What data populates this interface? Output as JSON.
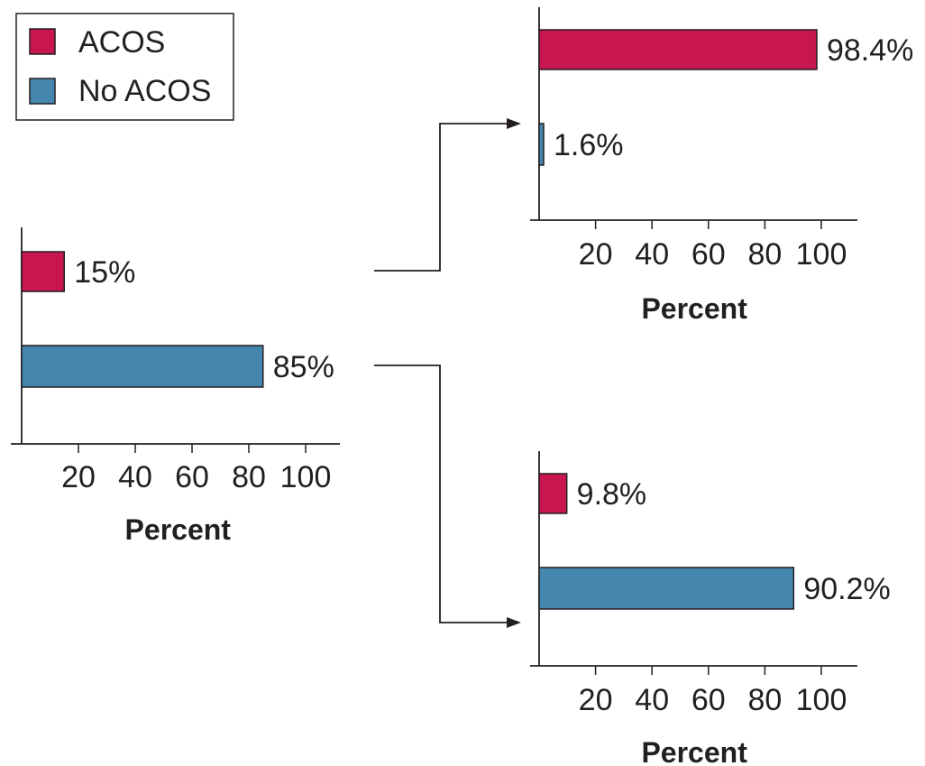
{
  "legend": {
    "items": [
      {
        "label": "ACOS",
        "color": "#c8174f"
      },
      {
        "label": "No ACOS",
        "color": "#4586ae"
      }
    ]
  },
  "colors": {
    "axis": "#231f20",
    "bar_stroke": "#231f20",
    "connector": "#231f20"
  },
  "chart_data": [
    {
      "type": "bar",
      "orientation": "horizontal",
      "categories": [
        "ACOS",
        "No ACOS"
      ],
      "values": [
        15,
        85
      ],
      "data_labels": [
        "15%",
        "85%"
      ],
      "xlabel": "Percent",
      "xlim": [
        0,
        100
      ],
      "xticks": [
        20,
        40,
        60,
        80,
        100
      ],
      "grid": false
    },
    {
      "type": "bar",
      "orientation": "horizontal",
      "categories": [
        "ACOS",
        "No ACOS"
      ],
      "values": [
        98.4,
        1.6
      ],
      "data_labels": [
        "98.4%",
        "1.6%"
      ],
      "xlabel": "Percent",
      "xlim": [
        0,
        100
      ],
      "xticks": [
        20,
        40,
        60,
        80,
        100
      ],
      "grid": false
    },
    {
      "type": "bar",
      "orientation": "horizontal",
      "categories": [
        "ACOS",
        "No ACOS"
      ],
      "values": [
        9.8,
        90.2
      ],
      "data_labels": [
        "9.8%",
        "90.2%"
      ],
      "xlabel": "Percent",
      "xlim": [
        0,
        100
      ],
      "xticks": [
        20,
        40,
        60,
        80,
        100
      ],
      "grid": false
    }
  ]
}
